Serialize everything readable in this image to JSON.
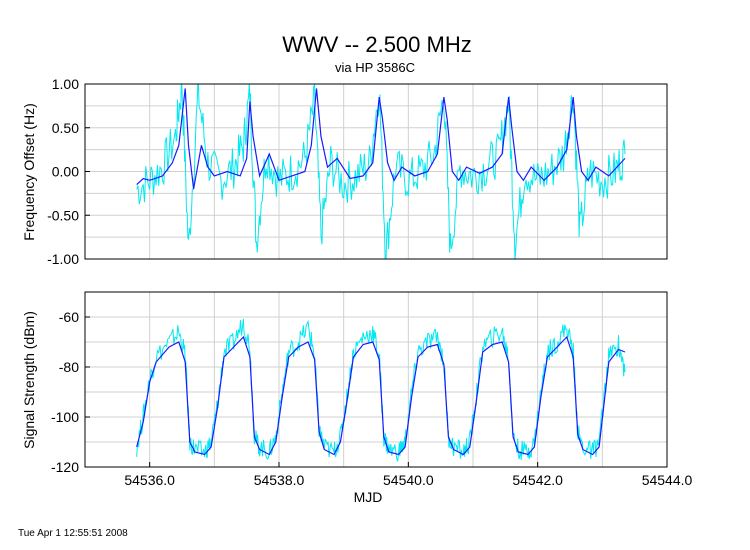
{
  "chart_data": [
    {
      "type": "line",
      "title": "WWV -- 2.500 MHz",
      "subtitle": "via HP 3586C",
      "xlabel": "",
      "ylabel": "Frequency Offset (Hz)",
      "xlim": [
        54535.0,
        54544.0
      ],
      "ylim": [
        -1.0,
        1.0
      ],
      "yticks": [
        "1.00",
        "0.50",
        "0.00",
        "-0.50",
        "-1.00"
      ],
      "ytick_values": [
        1.0,
        0.5,
        0.0,
        -0.5,
        -1.0
      ],
      "grid": true,
      "series": [
        {
          "color": "#00e8f0",
          "style": "raw, heavy scatter",
          "x": [
            54535.8,
            54536.0,
            54536.2,
            54536.4,
            54536.5,
            54536.6,
            54536.75,
            54536.9,
            54537.1,
            54537.3,
            54537.45,
            54537.55,
            54537.65,
            54537.8,
            54538.0,
            54538.2,
            54538.4,
            54538.55,
            54538.65,
            54538.8,
            54539.0,
            54539.2,
            54539.4,
            54539.55,
            54539.65,
            54539.8,
            54540.0,
            54540.2,
            54540.4,
            54540.55,
            54540.65,
            54540.8,
            54541.0,
            54541.2,
            54541.4,
            54541.55,
            54541.65,
            54541.8,
            54542.0,
            54542.2,
            54542.4,
            54542.55,
            54542.65,
            54542.8,
            54543.0,
            54543.2,
            54543.35
          ],
          "y": [
            -0.2,
            -0.1,
            0.05,
            0.4,
            1.0,
            -0.9,
            0.9,
            0.1,
            -0.1,
            0.05,
            0.3,
            0.9,
            -0.8,
            0.2,
            -0.1,
            0.0,
            0.15,
            0.8,
            -0.7,
            0.1,
            -0.15,
            -0.05,
            0.1,
            0.95,
            -0.95,
            0.05,
            -0.1,
            0.0,
            0.2,
            0.9,
            -0.9,
            0.05,
            -0.05,
            0.05,
            0.2,
            0.8,
            -0.8,
            0.0,
            -0.1,
            0.0,
            0.2,
            0.9,
            -0.7,
            0.0,
            -0.1,
            0.0,
            0.2
          ]
        },
        {
          "color": "#1a1aff",
          "style": "averaged",
          "x": [
            54535.8,
            54535.9,
            54536.0,
            54536.2,
            54536.35,
            54536.45,
            54536.55,
            54536.6,
            54536.68,
            54536.8,
            54536.9,
            54537.0,
            54537.2,
            54537.4,
            54537.5,
            54537.55,
            54537.6,
            54537.7,
            54537.85,
            54538.0,
            54538.2,
            54538.4,
            54538.5,
            54538.58,
            54538.65,
            54538.75,
            54538.9,
            54539.1,
            54539.3,
            54539.45,
            54539.55,
            54539.6,
            54539.68,
            54539.78,
            54539.9,
            54540.1,
            54540.3,
            54540.45,
            54540.55,
            54540.6,
            54540.68,
            54540.78,
            54540.9,
            54541.1,
            54541.3,
            54541.45,
            54541.55,
            54541.6,
            54541.68,
            54541.78,
            54541.9,
            54542.1,
            54542.3,
            54542.45,
            54542.55,
            54542.6,
            54542.68,
            54542.78,
            54542.9,
            54543.1,
            54543.35
          ],
          "y": [
            -0.15,
            -0.08,
            -0.1,
            -0.05,
            0.1,
            0.3,
            0.95,
            0.3,
            -0.2,
            0.3,
            0.05,
            -0.05,
            0.0,
            -0.05,
            0.15,
            0.8,
            0.4,
            -0.05,
            0.2,
            -0.1,
            -0.05,
            0.0,
            0.3,
            0.95,
            0.4,
            0.05,
            0.15,
            -0.08,
            -0.05,
            0.1,
            0.85,
            0.6,
            0.1,
            -0.1,
            0.05,
            -0.05,
            0.0,
            0.2,
            0.85,
            0.6,
            0.0,
            -0.1,
            0.05,
            -0.02,
            0.05,
            0.2,
            0.85,
            0.5,
            0.0,
            -0.1,
            0.05,
            -0.1,
            0.05,
            0.25,
            0.85,
            0.4,
            0.0,
            -0.1,
            0.05,
            -0.05,
            0.15
          ]
        }
      ]
    },
    {
      "type": "line",
      "xlabel": "MJD",
      "ylabel": "Signal Strength (dBm)",
      "xlim": [
        54535.0,
        54544.0
      ],
      "ylim": [
        -120,
        -50
      ],
      "yticks": [
        "-60",
        "-80",
        "-100",
        "-120"
      ],
      "ytick_values": [
        -60,
        -80,
        -100,
        -120
      ],
      "xticks": [
        "54536.0",
        "54538.0",
        "54540.0",
        "54542.0",
        "54544.0"
      ],
      "xtick_values": [
        54536.0,
        54538.0,
        54540.0,
        54542.0,
        54544.0
      ],
      "grid": true,
      "series": [
        {
          "color": "#00e8f0",
          "style": "raw, noisy",
          "x": [
            54535.8,
            54535.9,
            54536.0,
            54536.1,
            54536.3,
            54536.45,
            54536.55,
            54536.62,
            54536.7,
            54536.85,
            54536.95,
            54537.05,
            54537.15,
            54537.3,
            54537.45,
            54537.55,
            54537.62,
            54537.7,
            54537.85,
            54537.95,
            54538.05,
            54538.15,
            54538.3,
            54538.45,
            54538.55,
            54538.62,
            54538.7,
            54538.85,
            54538.95,
            54539.05,
            54539.15,
            54539.3,
            54539.45,
            54539.55,
            54539.62,
            54539.7,
            54539.85,
            54539.95,
            54540.05,
            54540.15,
            54540.3,
            54540.45,
            54540.55,
            54540.62,
            54540.7,
            54540.85,
            54540.95,
            54541.05,
            54541.15,
            54541.3,
            54541.45,
            54541.55,
            54541.62,
            54541.7,
            54541.85,
            54541.95,
            54542.05,
            54542.15,
            54542.3,
            54542.45,
            54542.55,
            54542.62,
            54542.7,
            54542.85,
            54542.95,
            54543.1,
            54543.25,
            54543.35
          ],
          "y": [
            -112,
            -100,
            -85,
            -76,
            -70,
            -66,
            -75,
            -110,
            -113,
            -114,
            -110,
            -95,
            -74,
            -70,
            -62,
            -72,
            -108,
            -112,
            -114,
            -108,
            -90,
            -74,
            -70,
            -64,
            -75,
            -105,
            -112,
            -114,
            -108,
            -92,
            -74,
            -68,
            -66,
            -75,
            -108,
            -113,
            -114,
            -110,
            -90,
            -74,
            -70,
            -68,
            -78,
            -108,
            -112,
            -114,
            -110,
            -92,
            -72,
            -68,
            -66,
            -76,
            -108,
            -113,
            -114,
            -110,
            -90,
            -74,
            -70,
            -64,
            -74,
            -106,
            -112,
            -114,
            -110,
            -76,
            -71,
            -82
          ]
        },
        {
          "color": "#1a1aff",
          "style": "averaged",
          "x": [
            54535.8,
            54535.9,
            54536.0,
            54536.1,
            54536.3,
            54536.45,
            54536.55,
            54536.62,
            54536.7,
            54536.85,
            54536.95,
            54537.05,
            54537.15,
            54537.3,
            54537.45,
            54537.55,
            54537.62,
            54537.7,
            54537.85,
            54537.95,
            54538.05,
            54538.15,
            54538.3,
            54538.45,
            54538.55,
            54538.62,
            54538.7,
            54538.85,
            54538.95,
            54539.05,
            54539.15,
            54539.3,
            54539.45,
            54539.55,
            54539.62,
            54539.7,
            54539.85,
            54539.95,
            54540.05,
            54540.15,
            54540.3,
            54540.45,
            54540.55,
            54540.62,
            54540.7,
            54540.85,
            54540.95,
            54541.05,
            54541.15,
            54541.3,
            54541.45,
            54541.55,
            54541.62,
            54541.7,
            54541.85,
            54541.95,
            54542.05,
            54542.15,
            54542.3,
            54542.45,
            54542.55,
            54542.62,
            54542.7,
            54542.85,
            54542.95,
            54543.1,
            54543.25,
            54543.35
          ],
          "y": [
            -112,
            -102,
            -86,
            -78,
            -72,
            -70,
            -78,
            -110,
            -114,
            -115,
            -112,
            -96,
            -76,
            -72,
            -68,
            -76,
            -108,
            -113,
            -115,
            -110,
            -92,
            -76,
            -72,
            -70,
            -77,
            -106,
            -113,
            -115,
            -110,
            -94,
            -76,
            -71,
            -70,
            -77,
            -108,
            -114,
            -115,
            -112,
            -92,
            -76,
            -72,
            -71,
            -79,
            -108,
            -113,
            -115,
            -112,
            -94,
            -74,
            -71,
            -70,
            -78,
            -108,
            -114,
            -115,
            -112,
            -92,
            -76,
            -72,
            -68,
            -76,
            -107,
            -113,
            -115,
            -112,
            -78,
            -73,
            -74
          ]
        }
      ]
    }
  ],
  "footer_timestamp": "Tue Apr  1 12:55:51 2008"
}
